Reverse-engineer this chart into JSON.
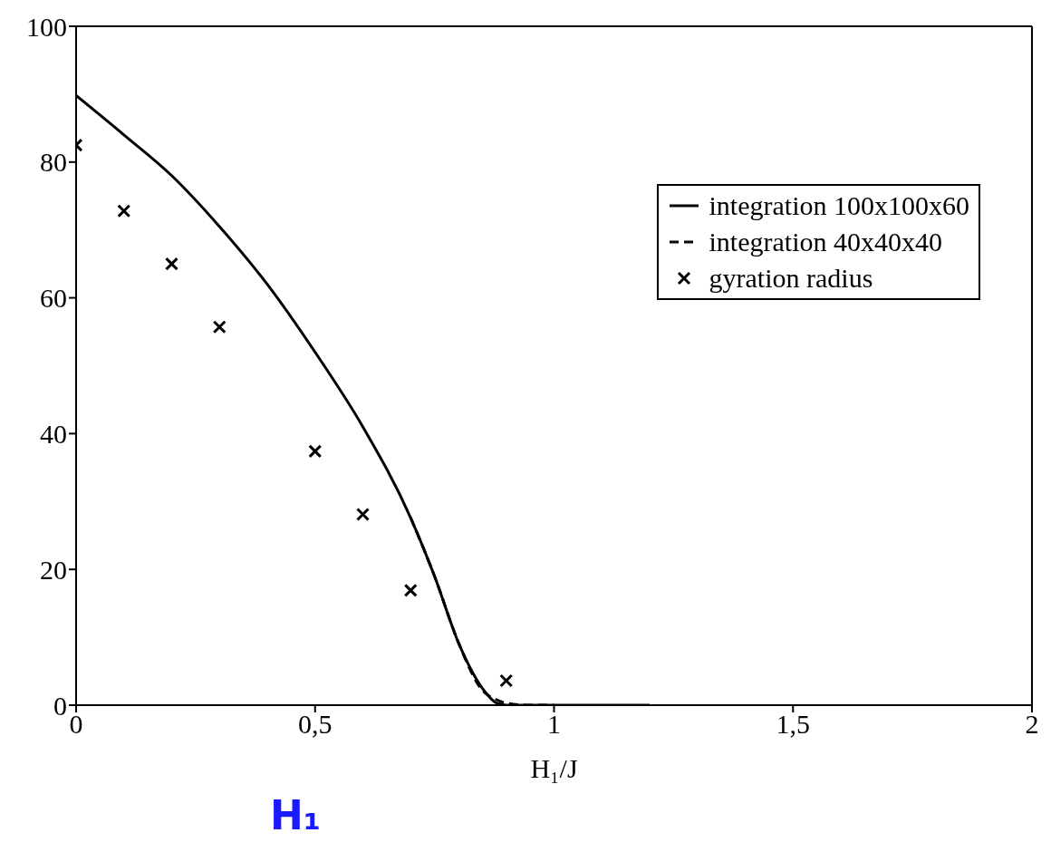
{
  "chart_data": {
    "type": "line",
    "xlabel": "H₁/J",
    "xlim": [
      0,
      2
    ],
    "xticks": [
      0,
      {
        "value": 0.5,
        "label": "0,5"
      },
      1,
      {
        "value": 1.5,
        "label": "1,5"
      },
      2
    ],
    "ylim": [
      0,
      100
    ],
    "yticks": [
      0,
      20,
      40,
      60,
      80,
      100
    ],
    "legend": "top right",
    "series": [
      {
        "name": "integration 100x100x60",
        "color": "#000000",
        "line_style": "solid",
        "marker": "none",
        "x": [
          0,
          0.1,
          0.2,
          0.3,
          0.4,
          0.5,
          0.6,
          0.7,
          0.75,
          0.8,
          0.85,
          0.88,
          0.9,
          1.0,
          1.1,
          1.2
        ],
        "values": [
          89.8,
          84,
          78,
          70.5,
          62,
          52,
          41,
          27.6,
          19,
          9.2,
          2.5,
          0.3,
          0,
          0,
          0,
          0
        ]
      },
      {
        "name": "integration 40x40x40",
        "color": "#000000",
        "line_style": "dashed",
        "marker": "none",
        "x": [
          0.7,
          0.75,
          0.8,
          0.85,
          0.88,
          0.9,
          0.95,
          1.0
        ],
        "values": [
          27.6,
          19,
          9.2,
          2.2,
          0.8,
          0.3,
          0,
          0
        ]
      },
      {
        "name": "gyration radius",
        "type": "scatter",
        "color": "#000000",
        "marker": "cross",
        "x": [
          0,
          0.1,
          0.2,
          0.3,
          0.5,
          0.6,
          0.7,
          0.9
        ],
        "values": [
          82.5,
          72.8,
          65,
          55.7,
          37.4,
          28.1,
          16.9,
          3.6
        ]
      }
    ],
    "annotations": [
      "H₁"
    ]
  }
}
